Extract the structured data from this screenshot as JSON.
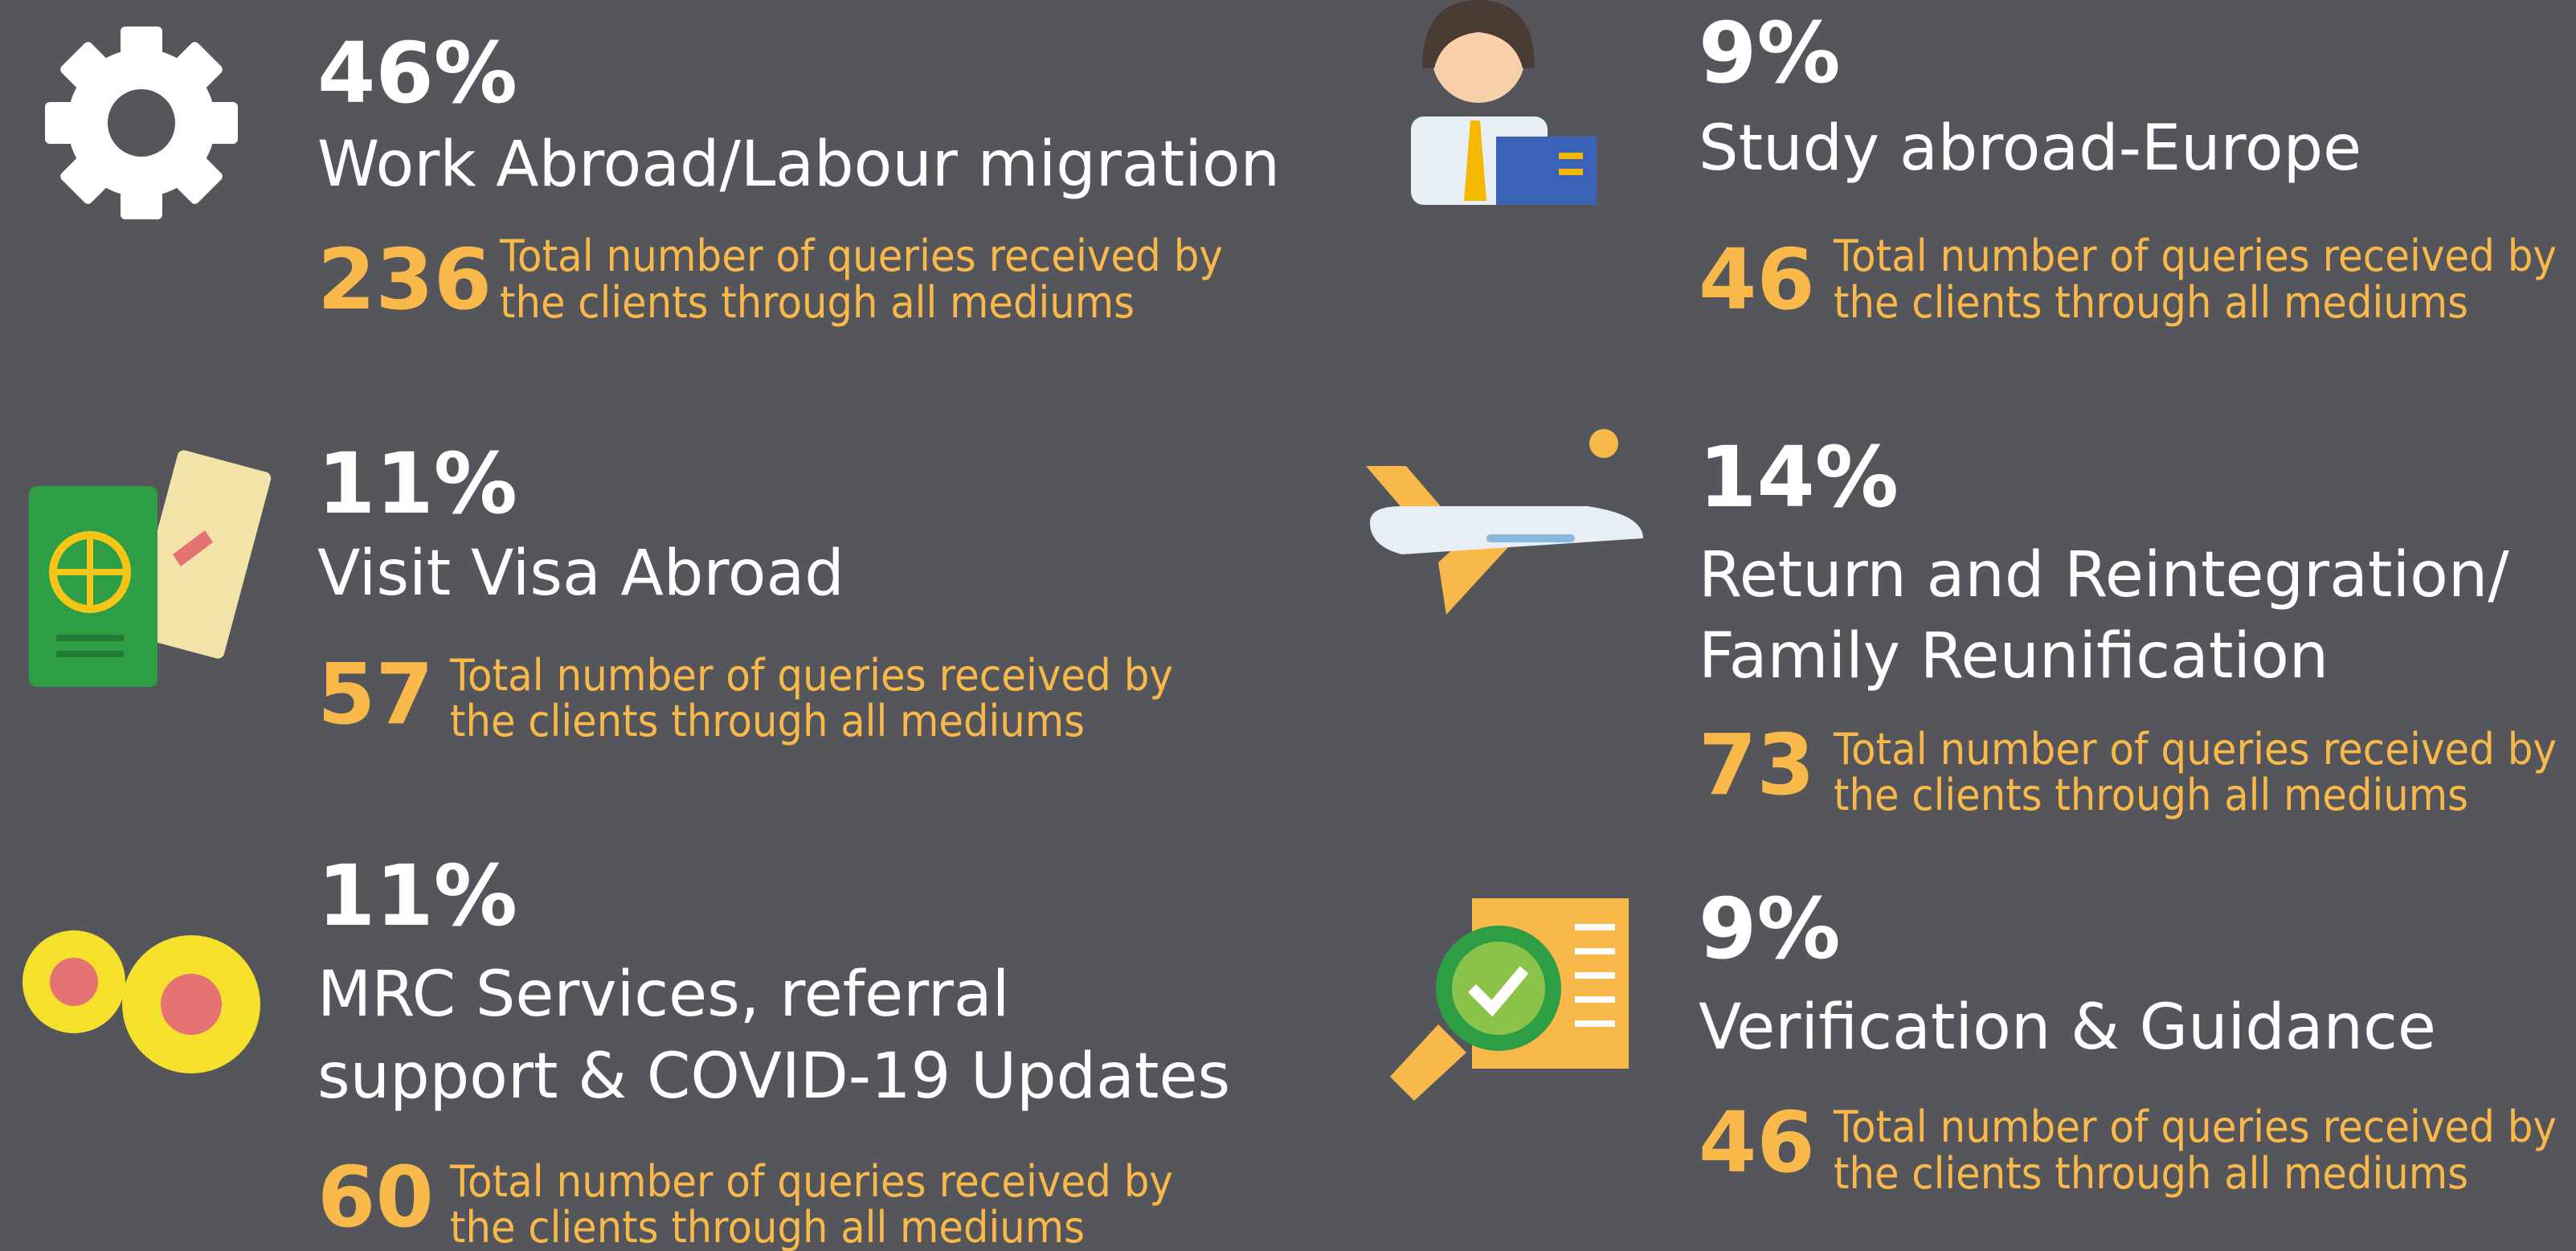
{
  "items": [
    {
      "percent": "46%",
      "title": [
        "Work Abroad/Labour migration"
      ],
      "count": "236",
      "description": [
        "Total number of queries received by",
        "the clients through all mediums"
      ]
    },
    {
      "percent": "11%",
      "title": [
        "Visit Visa Abroad"
      ],
      "count": "57",
      "description": [
        "Total number of queries received by",
        "the clients through all mediums"
      ]
    },
    {
      "percent": "11%",
      "title": [
        "MRC Services, referral",
        "support & COVID-19 Updates"
      ],
      "count": "60",
      "description": [
        "Total number of queries received by",
        "the clients through all mediums"
      ]
    },
    {
      "percent": "9%",
      "title": [
        "Study abroad-Europe"
      ],
      "count": "46",
      "description": [
        "Total number of queries received by",
        "the clients through all mediums"
      ]
    },
    {
      "percent": "14%",
      "title": [
        "Return and Reintegration/",
        "Family Reunification"
      ],
      "count": "73",
      "description": [
        "Total number of queries received by",
        "the clients through all mediums"
      ]
    },
    {
      "percent": "9%",
      "title": [
        "Verification & Guidance"
      ],
      "count": "46",
      "description": [
        "Total number of queries received by",
        "the clients through all mediums"
      ]
    }
  ]
}
